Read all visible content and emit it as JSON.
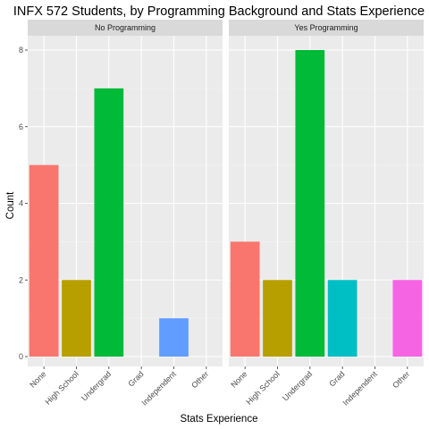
{
  "chart_data": {
    "type": "bar",
    "title": "INFX 572 Students, by Programming Background and Stats Experience",
    "xlabel": "Stats Experience",
    "ylabel": "Count",
    "ylim": [
      0,
      8.4
    ],
    "yticks": [
      0,
      2,
      4,
      6,
      8
    ],
    "grid": true,
    "categories": [
      "None",
      "High School",
      "Undergrad",
      "Grad",
      "Independent",
      "Other"
    ],
    "category_colors": [
      "#F8766D",
      "#B79F00",
      "#00BA38",
      "#00BFC4",
      "#619CFF",
      "#F564E3"
    ],
    "panel_background": "#EBEBEB",
    "strip_background": "#D9D9D9",
    "facets": [
      {
        "label": "No Programming",
        "values": [
          5,
          2,
          7,
          0,
          1,
          0
        ]
      },
      {
        "label": "Yes Programming",
        "values": [
          3,
          2,
          8,
          2,
          0,
          2
        ]
      }
    ]
  }
}
